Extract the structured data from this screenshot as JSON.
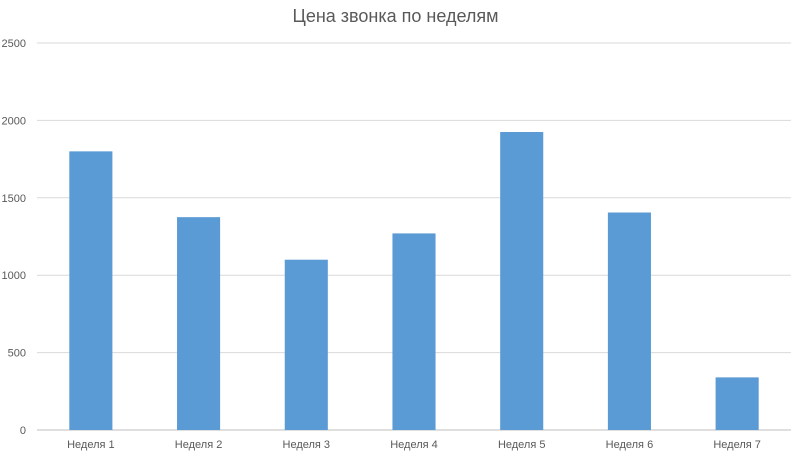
{
  "chart_data": {
    "type": "bar",
    "title": "Цена звонка по неделям",
    "xlabel": "",
    "ylabel": "",
    "categories": [
      "Неделя 1",
      "Неделя 2",
      "Неделя 3",
      "Неделя 4",
      "Неделя 5",
      "Неделя 6",
      "Неделя 7"
    ],
    "values": [
      1800,
      1375,
      1100,
      1270,
      1925,
      1405,
      340
    ],
    "ylim": [
      0,
      2500
    ],
    "yticks": [
      "0",
      "500",
      "1000",
      "1500",
      "2000",
      "2500"
    ],
    "grid": true,
    "legend": "none",
    "colors": {
      "bar": "#5b9bd5",
      "grid": "#d9d9d9",
      "axis": "#bfbfbf",
      "text": "#595959"
    }
  }
}
